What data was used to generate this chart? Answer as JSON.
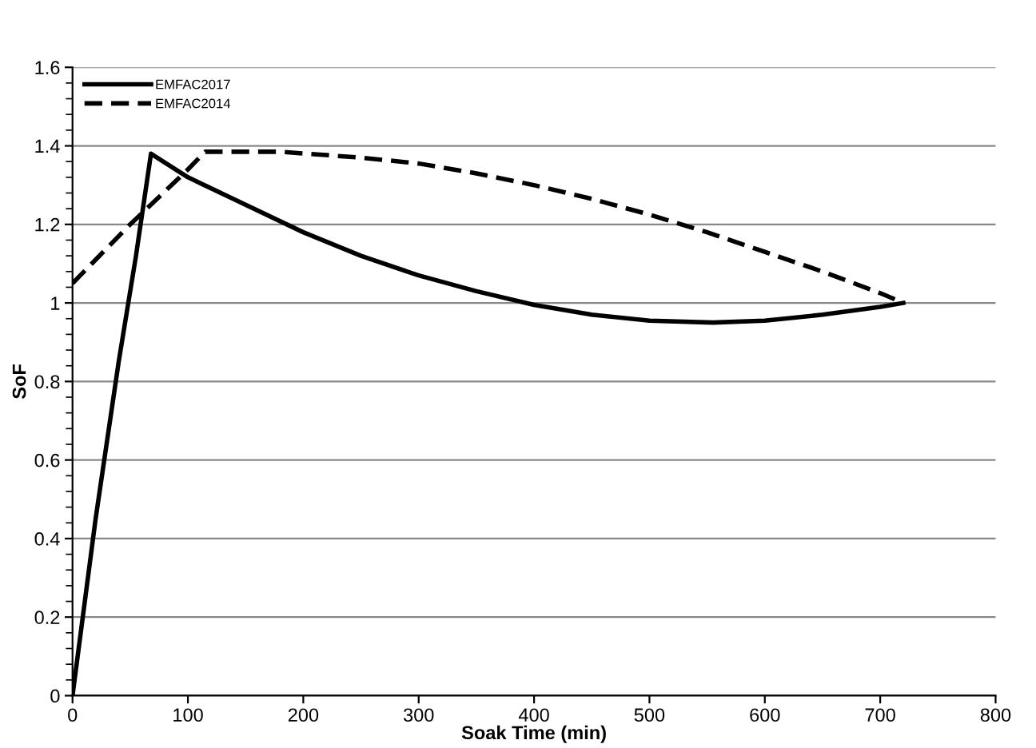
{
  "chart_data": {
    "type": "line",
    "xlabel": "Soak Time (min)",
    "ylabel": "SoF",
    "xlim": [
      0,
      800
    ],
    "xticks": [
      0,
      100,
      200,
      300,
      400,
      500,
      600,
      700,
      800
    ],
    "ylim": [
      0,
      1.6
    ],
    "yticks": [
      0,
      0.2,
      0.4,
      0.6,
      0.8,
      1,
      1.2,
      1.4,
      1.6
    ],
    "grid": "y",
    "legend": "top left",
    "marker": "none",
    "series": [
      {
        "name": "EMFAC2017",
        "color": "#000000",
        "line_style": "solid",
        "x": [
          0,
          20,
          40,
          55,
          68,
          100,
          150,
          200,
          250,
          300,
          350,
          400,
          450,
          500,
          555,
          600,
          650,
          700,
          720
        ],
        "values": [
          0,
          0.45,
          0.85,
          1.12,
          1.38,
          1.32,
          1.25,
          1.18,
          1.12,
          1.07,
          1.03,
          0.995,
          0.97,
          0.955,
          0.95,
          0.955,
          0.97,
          0.99,
          1.0
        ]
      },
      {
        "name": "EMFAC2014",
        "color": "#000000",
        "line_style": "dashed",
        "x": [
          0,
          50,
          100,
          115,
          180,
          250,
          300,
          350,
          400,
          450,
          500,
          550,
          600,
          650,
          700,
          720
        ],
        "values": [
          1.05,
          1.2,
          1.34,
          1.385,
          1.385,
          1.37,
          1.355,
          1.33,
          1.3,
          1.265,
          1.225,
          1.18,
          1.13,
          1.08,
          1.025,
          1.0
        ]
      }
    ]
  }
}
